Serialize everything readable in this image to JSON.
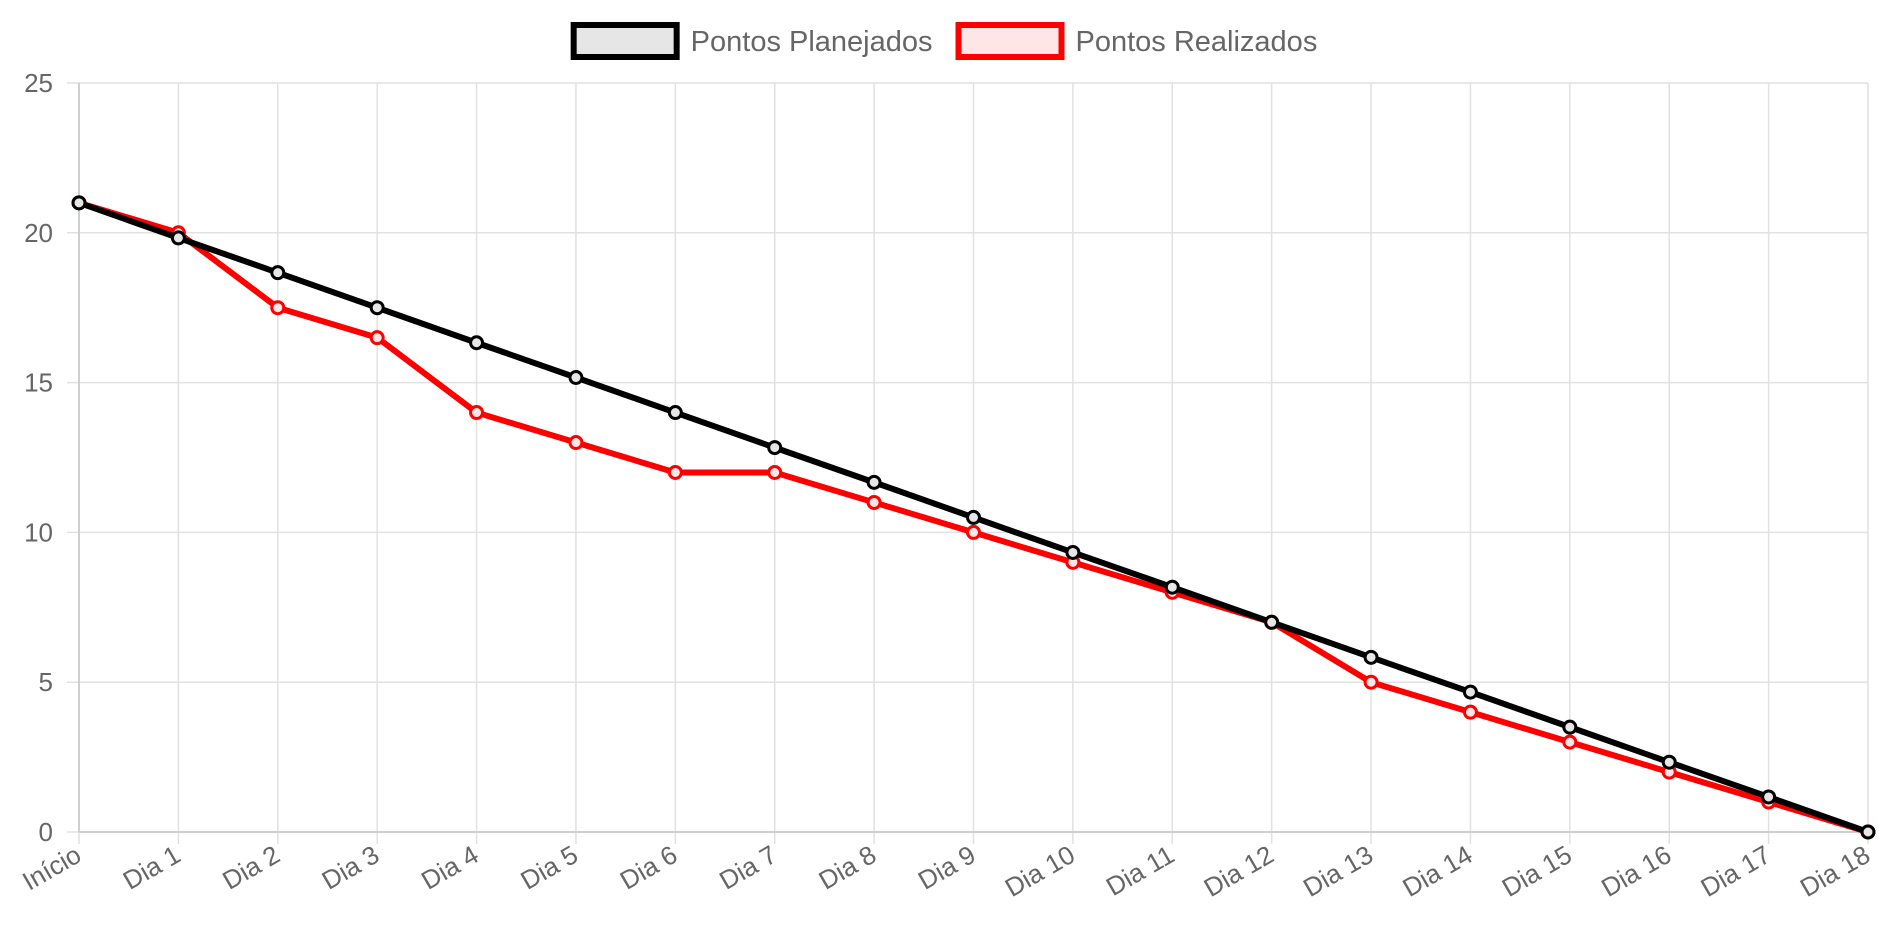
{
  "chart_data": {
    "type": "line",
    "categories": [
      "Início",
      "Dia 1",
      "Dia 2",
      "Dia 3",
      "Dia 4",
      "Dia 5",
      "Dia 6",
      "Dia 7",
      "Dia 8",
      "Dia 9",
      "Dia 10",
      "Dia 11",
      "Dia 12",
      "Dia 13",
      "Dia 14",
      "Dia 15",
      "Dia 16",
      "Dia 17",
      "Dia 18"
    ],
    "series": [
      {
        "name": "Pontos Planejados",
        "color": "#000000",
        "fill": "#e6e6e6",
        "values": [
          21,
          19.83,
          18.67,
          17.5,
          16.33,
          15.17,
          14,
          12.83,
          11.67,
          10.5,
          9.33,
          8.17,
          7,
          5.83,
          4.67,
          3.5,
          2.33,
          1.17,
          0
        ]
      },
      {
        "name": "Pontos Realizados",
        "color": "#ff0000",
        "fill": "#ffe6e6",
        "values": [
          21,
          20,
          17.5,
          16.5,
          14,
          13,
          12,
          12,
          11,
          10,
          9,
          8,
          7,
          5,
          4,
          3,
          2,
          1,
          0
        ]
      }
    ],
    "yticks": [
      0,
      5,
      10,
      15,
      20,
      25
    ],
    "ylim": [
      0,
      25
    ],
    "grid": true,
    "legend_position": "top-center"
  }
}
